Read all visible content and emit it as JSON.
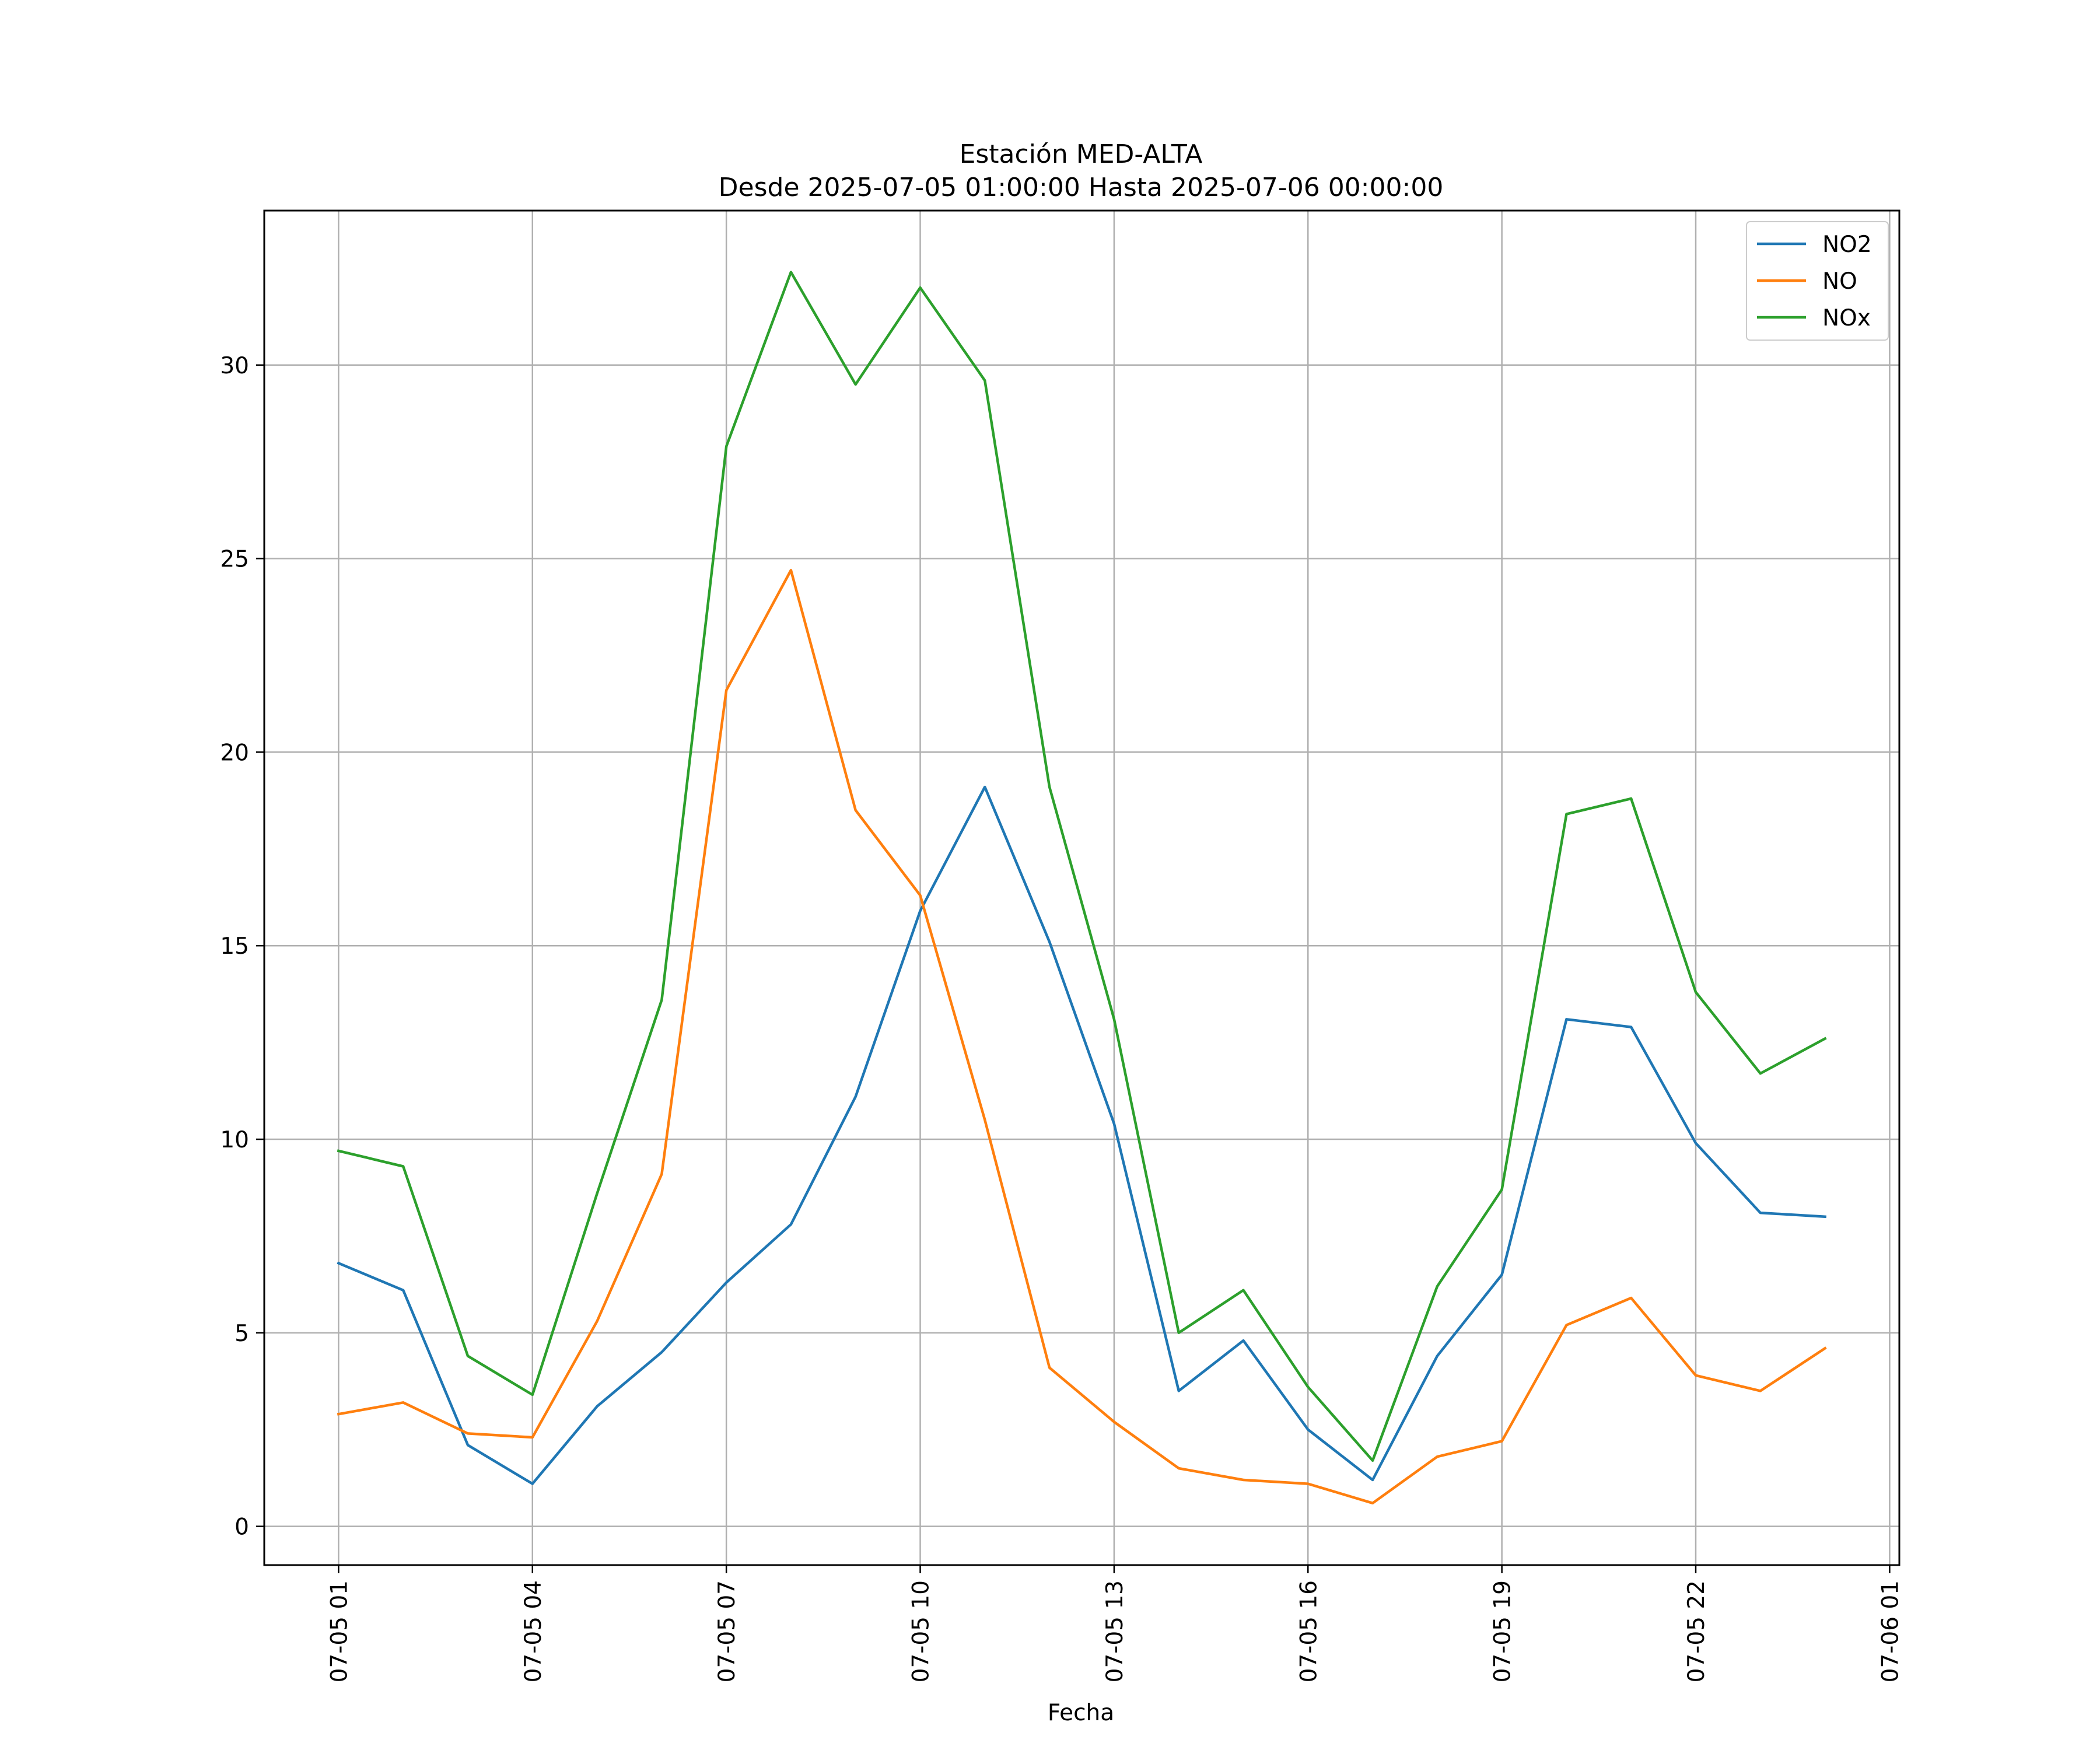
{
  "chart_data": {
    "type": "line",
    "title": "Estación MED-ALTA",
    "subtitle": "Desde 2025-07-05 01:00:00 Hasta 2025-07-06 00:00:00",
    "xlabel": "Fecha",
    "ylabel": "",
    "x": [
      "2025-07-05 01:00",
      "2025-07-05 02:00",
      "2025-07-05 03:00",
      "2025-07-05 04:00",
      "2025-07-05 05:00",
      "2025-07-05 06:00",
      "2025-07-05 07:00",
      "2025-07-05 08:00",
      "2025-07-05 09:00",
      "2025-07-05 10:00",
      "2025-07-05 11:00",
      "2025-07-05 12:00",
      "2025-07-05 13:00",
      "2025-07-05 14:00",
      "2025-07-05 15:00",
      "2025-07-05 16:00",
      "2025-07-05 17:00",
      "2025-07-05 18:00",
      "2025-07-05 19:00",
      "2025-07-05 20:00",
      "2025-07-05 21:00",
      "2025-07-05 22:00",
      "2025-07-05 23:00",
      "2025-07-06 00:00"
    ],
    "xticks": [
      "07-05 01",
      "07-05 04",
      "07-05 07",
      "07-05 10",
      "07-05 13",
      "07-05 16",
      "07-05 19",
      "07-05 22",
      "07-06 01"
    ],
    "xlim": [
      "2025-07-04 23:51",
      "2025-07-06 01:09"
    ],
    "yticks": [
      "0",
      "5",
      "10",
      "15",
      "20",
      "25",
      "30"
    ],
    "ylim": [
      -1.0,
      33.99
    ],
    "grid": true,
    "legend_position": "top-right",
    "series": [
      {
        "name": "NO2",
        "color": "#1f77b4",
        "values": [
          6.8,
          6.1,
          2.1,
          1.1,
          3.1,
          4.5,
          6.3,
          7.8,
          11.1,
          15.9,
          19.1,
          15.1,
          10.4,
          3.5,
          4.8,
          2.5,
          1.2,
          4.4,
          6.5,
          13.1,
          12.9,
          9.9,
          8.1,
          8.0
        ]
      },
      {
        "name": "NO",
        "color": "#ff7f0e",
        "values": [
          2.9,
          3.2,
          2.4,
          2.3,
          5.3,
          9.1,
          21.6,
          24.7,
          18.5,
          16.3,
          10.5,
          4.1,
          2.7,
          1.5,
          1.2,
          1.1,
          0.6,
          1.8,
          2.2,
          5.2,
          5.9,
          3.9,
          3.5,
          4.6
        ]
      },
      {
        "name": "NOx",
        "color": "#2ca02c",
        "values": [
          9.7,
          9.3,
          4.4,
          3.4,
          8.6,
          13.6,
          27.9,
          32.4,
          29.5,
          32.0,
          29.6,
          19.1,
          13.1,
          5.0,
          6.1,
          3.6,
          1.7,
          6.2,
          8.7,
          18.4,
          18.8,
          13.8,
          11.7,
          12.6
        ]
      }
    ]
  }
}
